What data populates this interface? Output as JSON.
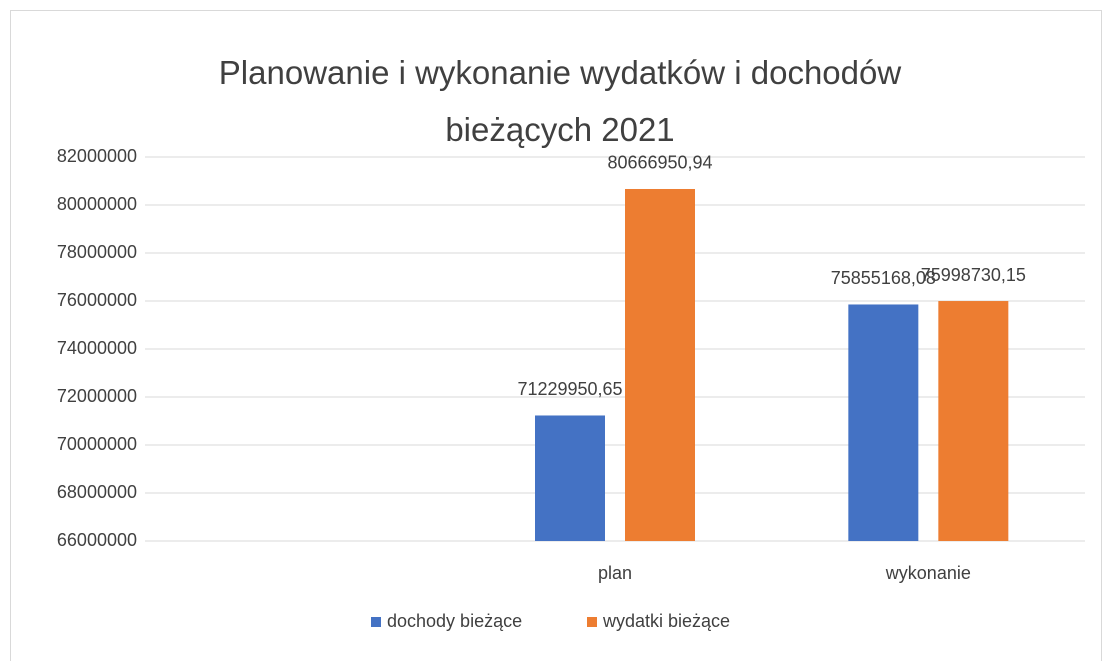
{
  "chart_data": {
    "type": "bar",
    "title": "Planowanie i wykonanie wydatków i dochodów bieżących 2021",
    "categories": [
      null,
      "plan",
      "wykonanie"
    ],
    "series": [
      {
        "name": "dochody bieżące",
        "color": "#4472c4",
        "values": [
          null,
          71229950.65,
          75855168.08
        ],
        "value_labels": [
          null,
          "71229950,65",
          "75855168,08"
        ]
      },
      {
        "name": "wydatki bieżące",
        "color": "#ed7d31",
        "values": [
          null,
          80666950.94,
          75998730.15
        ],
        "value_labels": [
          null,
          "80666950,94",
          "75998730,15"
        ]
      }
    ],
    "ylim": [
      66000000,
      82000000
    ],
    "yticks": [
      66000000,
      68000000,
      70000000,
      72000000,
      74000000,
      76000000,
      78000000,
      80000000,
      82000000
    ],
    "grid": true,
    "legend": "bottom"
  }
}
